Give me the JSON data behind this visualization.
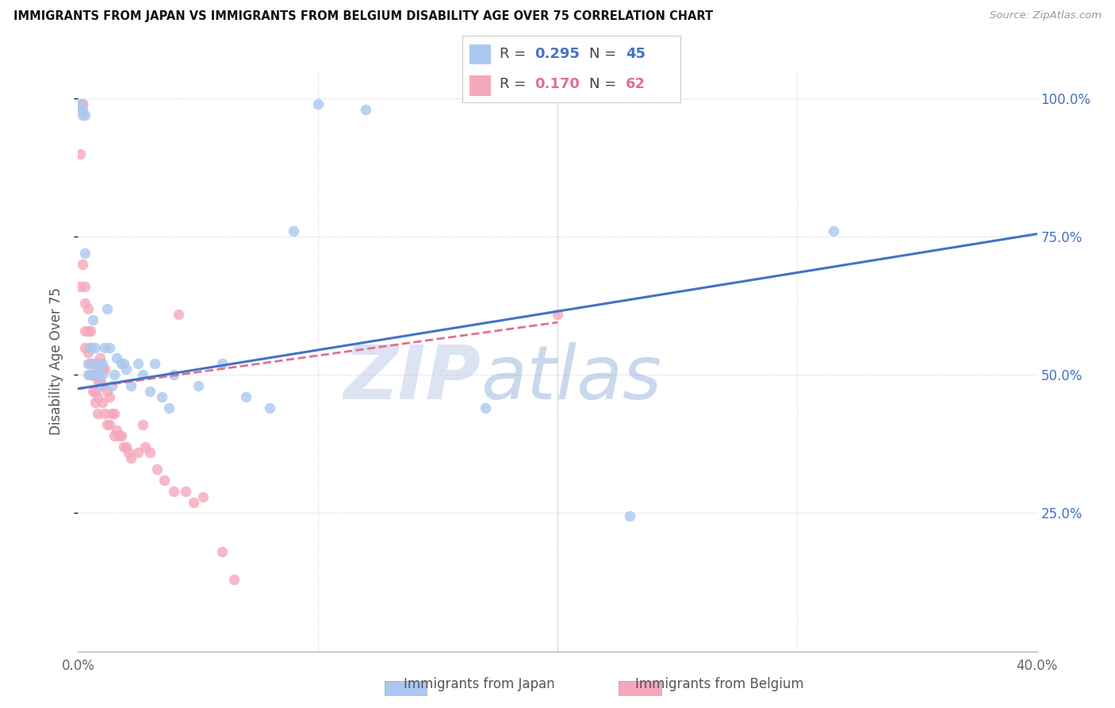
{
  "title": "IMMIGRANTS FROM JAPAN VS IMMIGRANTS FROM BELGIUM DISABILITY AGE OVER 75 CORRELATION CHART",
  "source": "Source: ZipAtlas.com",
  "ylabel": "Disability Age Over 75",
  "xmin": 0.0,
  "xmax": 0.4,
  "ymin": 0.0,
  "ymax": 1.05,
  "japan_color": "#aac8f0",
  "belgium_color": "#f5a8bb",
  "trend_japan_color": "#4472c4",
  "trend_belgium_color": "#e07090",
  "japan_R": 0.295,
  "japan_N": 45,
  "belgium_R": 0.17,
  "belgium_N": 62,
  "watermark": "ZIPatlas",
  "watermark_color": "#ccd8f0",
  "legend_japan_label": "Immigrants from Japan",
  "legend_belgium_label": "Immigrants from Belgium",
  "japan_x": [
    0.001,
    0.001,
    0.002,
    0.002,
    0.003,
    0.003,
    0.004,
    0.004,
    0.005,
    0.005,
    0.006,
    0.007,
    0.007,
    0.008,
    0.008,
    0.009,
    0.01,
    0.01,
    0.011,
    0.012,
    0.013,
    0.014,
    0.015,
    0.016,
    0.018,
    0.019,
    0.02,
    0.022,
    0.025,
    0.027,
    0.03,
    0.032,
    0.035,
    0.038,
    0.04,
    0.05,
    0.06,
    0.07,
    0.08,
    0.09,
    0.1,
    0.12,
    0.17,
    0.23,
    0.315
  ],
  "japan_y": [
    0.99,
    0.98,
    0.98,
    0.97,
    0.97,
    0.72,
    0.52,
    0.5,
    0.55,
    0.5,
    0.6,
    0.55,
    0.52,
    0.51,
    0.5,
    0.48,
    0.52,
    0.5,
    0.55,
    0.62,
    0.55,
    0.48,
    0.5,
    0.53,
    0.52,
    0.52,
    0.51,
    0.48,
    0.52,
    0.5,
    0.47,
    0.52,
    0.46,
    0.44,
    0.5,
    0.48,
    0.52,
    0.46,
    0.44,
    0.76,
    0.99,
    0.98,
    0.44,
    0.245,
    0.76
  ],
  "belgium_x": [
    0.001,
    0.001,
    0.002,
    0.002,
    0.002,
    0.003,
    0.003,
    0.003,
    0.003,
    0.004,
    0.004,
    0.004,
    0.005,
    0.005,
    0.005,
    0.005,
    0.006,
    0.006,
    0.006,
    0.007,
    0.007,
    0.007,
    0.007,
    0.008,
    0.008,
    0.008,
    0.008,
    0.009,
    0.009,
    0.01,
    0.01,
    0.01,
    0.011,
    0.011,
    0.012,
    0.012,
    0.013,
    0.013,
    0.014,
    0.015,
    0.015,
    0.016,
    0.017,
    0.018,
    0.019,
    0.02,
    0.021,
    0.022,
    0.025,
    0.027,
    0.028,
    0.03,
    0.033,
    0.036,
    0.04,
    0.042,
    0.045,
    0.048,
    0.052,
    0.06,
    0.065,
    0.2
  ],
  "belgium_y": [
    0.9,
    0.66,
    0.99,
    0.99,
    0.7,
    0.66,
    0.63,
    0.58,
    0.55,
    0.62,
    0.58,
    0.54,
    0.58,
    0.55,
    0.52,
    0.5,
    0.52,
    0.5,
    0.47,
    0.52,
    0.5,
    0.47,
    0.45,
    0.52,
    0.49,
    0.46,
    0.43,
    0.53,
    0.49,
    0.51,
    0.48,
    0.45,
    0.51,
    0.43,
    0.47,
    0.41,
    0.46,
    0.41,
    0.43,
    0.43,
    0.39,
    0.4,
    0.39,
    0.39,
    0.37,
    0.37,
    0.36,
    0.35,
    0.36,
    0.41,
    0.37,
    0.36,
    0.33,
    0.31,
    0.29,
    0.61,
    0.29,
    0.27,
    0.28,
    0.18,
    0.13,
    0.61
  ],
  "japan_trend_x0": 0.0,
  "japan_trend_y0": 0.475,
  "japan_trend_x1": 0.4,
  "japan_trend_y1": 0.755,
  "belgium_trend_x0": 0.0,
  "belgium_trend_y0": 0.475,
  "belgium_trend_x1": 0.2,
  "belgium_trend_y1": 0.595
}
